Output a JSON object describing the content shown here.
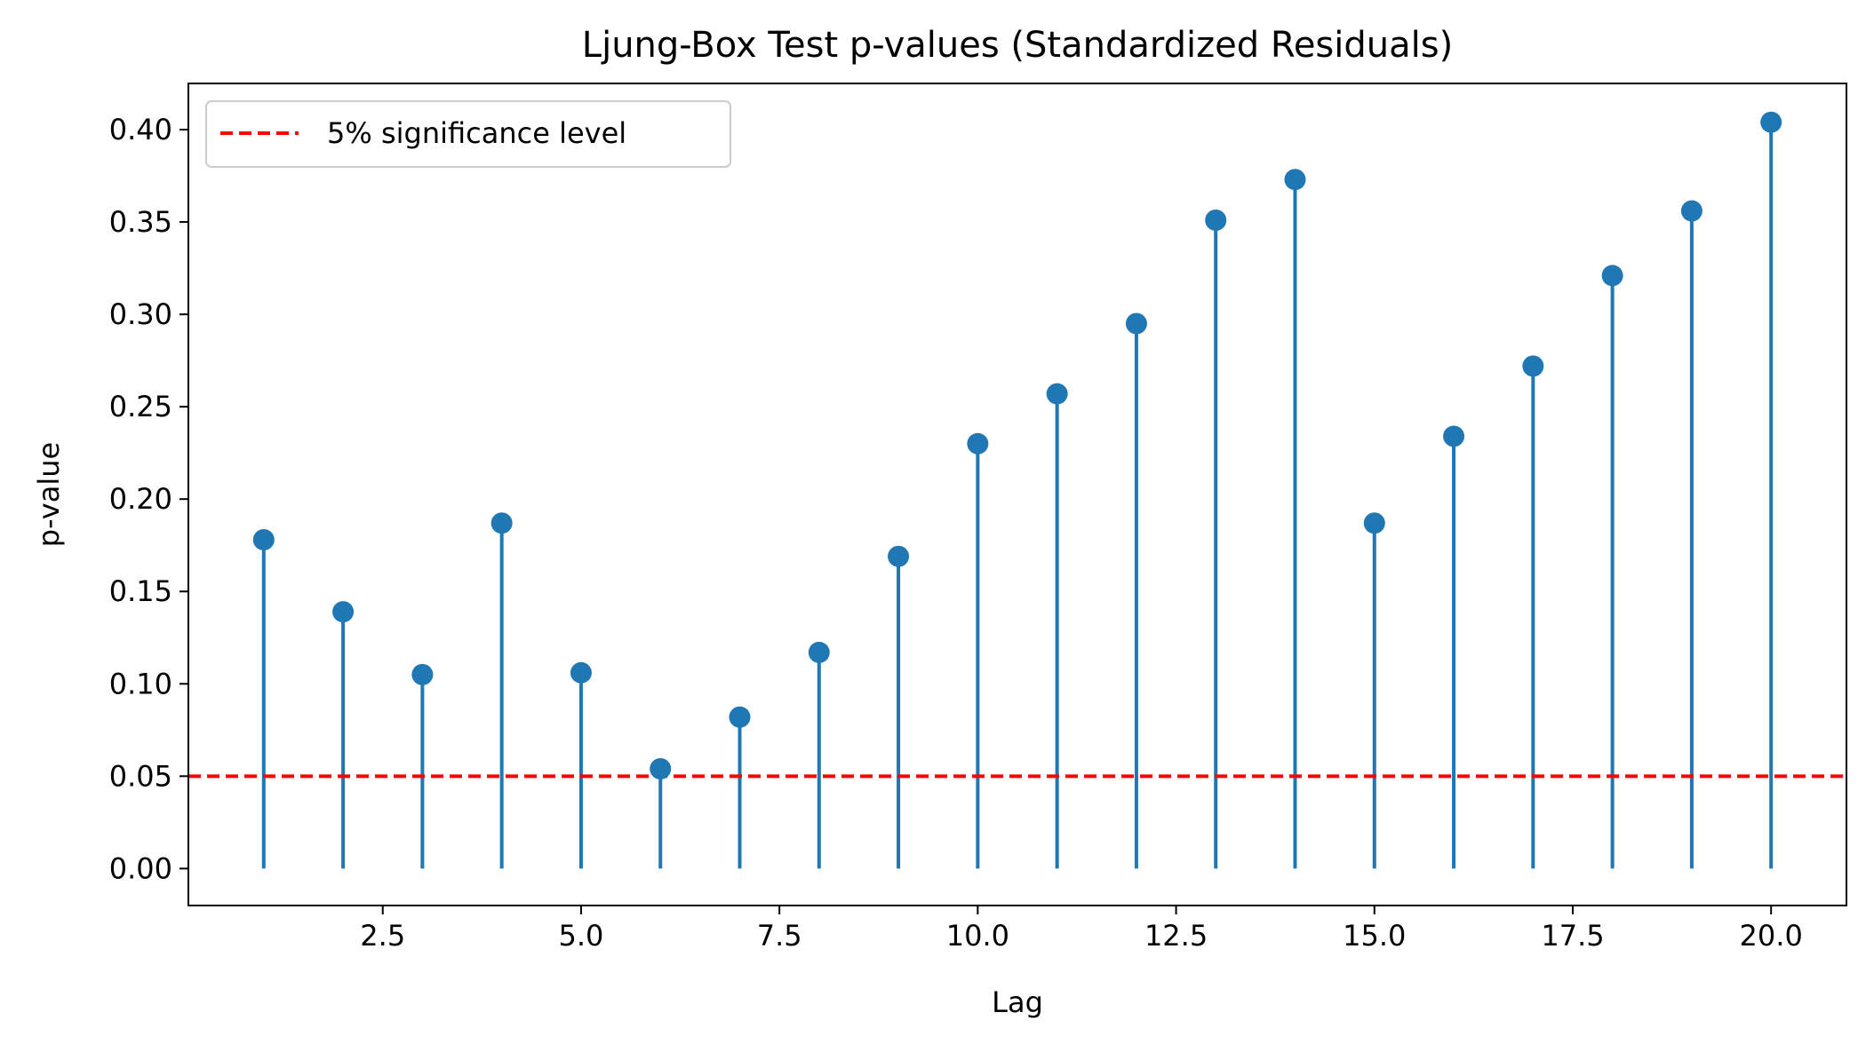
{
  "chart_data": {
    "type": "stem",
    "title": "Ljung-Box Test p-values (Standardized Residuals)",
    "xlabel": "Lag",
    "ylabel": "p-value",
    "xlim": [
      0.05,
      20.95
    ],
    "ylim": [
      -0.02,
      0.425
    ],
    "xticks": [
      2.5,
      5.0,
      7.5,
      10.0,
      12.5,
      15.0,
      17.5,
      20.0
    ],
    "xtick_labels": [
      "2.5",
      "5.0",
      "7.5",
      "10.0",
      "12.5",
      "15.0",
      "17.5",
      "20.0"
    ],
    "yticks": [
      0.0,
      0.05,
      0.1,
      0.15,
      0.2,
      0.25,
      0.3,
      0.35,
      0.4
    ],
    "ytick_labels": [
      "0.00",
      "0.05",
      "0.10",
      "0.15",
      "0.20",
      "0.25",
      "0.30",
      "0.35",
      "0.40"
    ],
    "grid": false,
    "legend_position": "top-left",
    "series": [
      {
        "kind": "stem",
        "color": "#1f77b4",
        "x": [
          1,
          2,
          3,
          4,
          5,
          6,
          7,
          8,
          9,
          10,
          11,
          12,
          13,
          14,
          15,
          16,
          17,
          18,
          19,
          20
        ],
        "values": [
          0.178,
          0.139,
          0.105,
          0.187,
          0.106,
          0.054,
          0.082,
          0.117,
          0.169,
          0.23,
          0.257,
          0.295,
          0.351,
          0.373,
          0.187,
          0.234,
          0.272,
          0.321,
          0.356,
          0.404
        ]
      }
    ],
    "reference_lines": [
      {
        "name": "5% significance level",
        "y": 0.05,
        "color": "#ff0000",
        "style": "dashed"
      }
    ]
  }
}
